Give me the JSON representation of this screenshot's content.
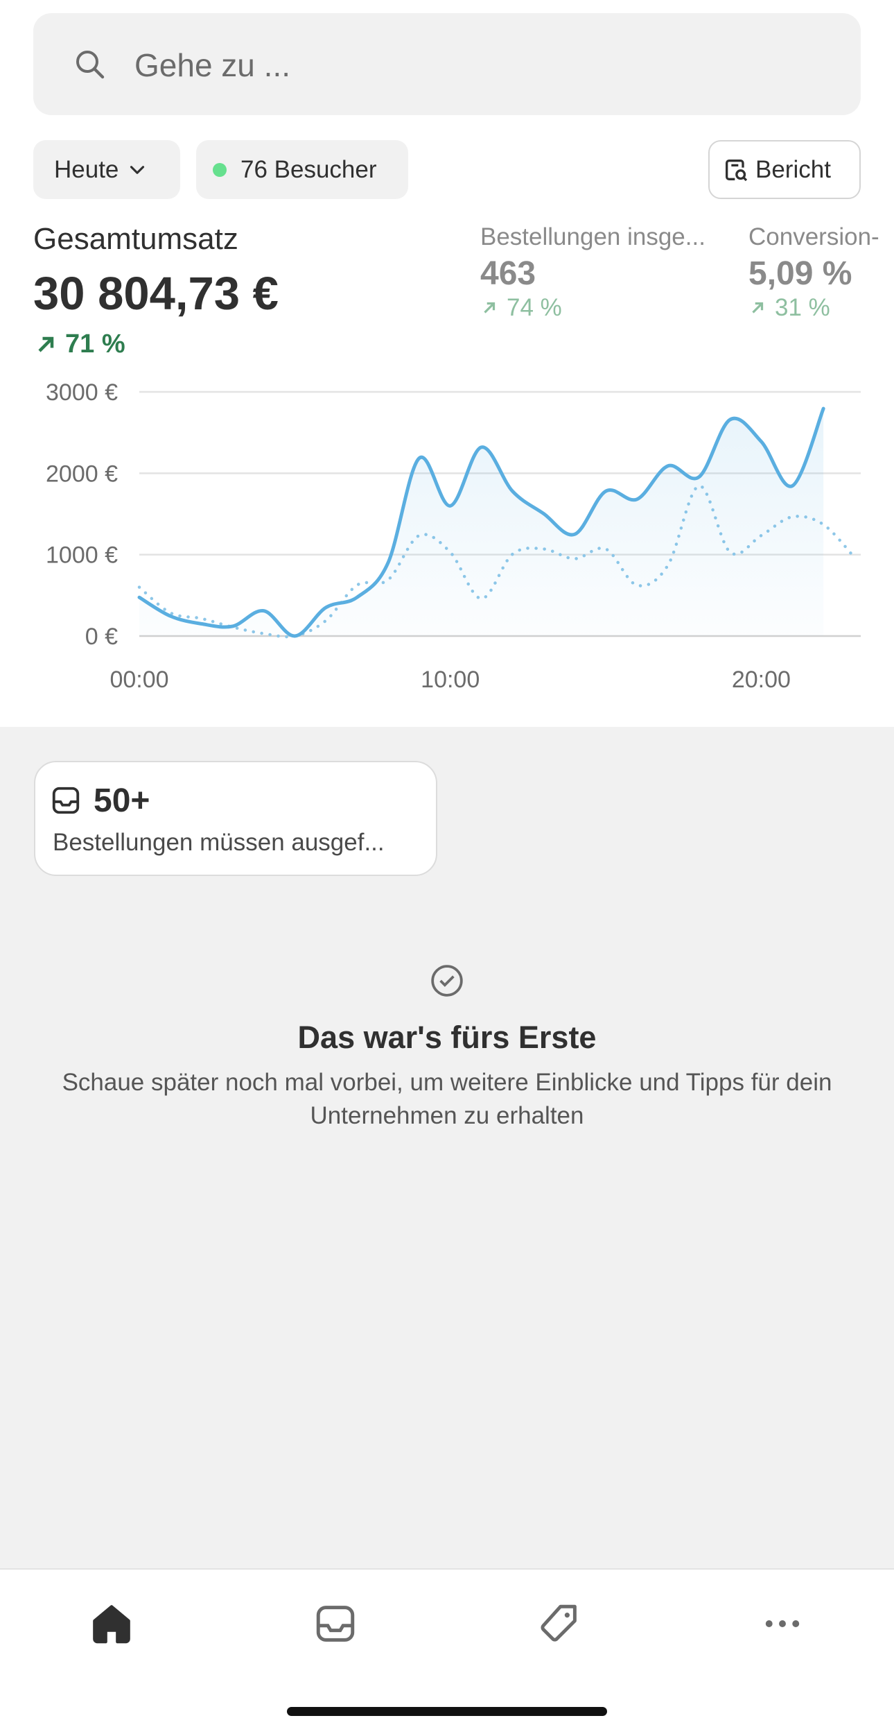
{
  "search": {
    "placeholder": "Gehe zu ..."
  },
  "filters": {
    "period": "Heute",
    "visitors": "76 Besucher",
    "report": "Bericht"
  },
  "metrics": [
    {
      "label": "Gesamtumsatz",
      "value": "30 804,73 €",
      "change": "71 %"
    },
    {
      "label": "Bestellungen insge...",
      "value": "463",
      "change": "74 %"
    },
    {
      "label": "Conversion-",
      "value": "5,09 %",
      "change": "31 %"
    }
  ],
  "chart_data": {
    "type": "line",
    "x": [
      0,
      1,
      2,
      3,
      4,
      5,
      6,
      7,
      8,
      9,
      10,
      11,
      12,
      13,
      14,
      15,
      16,
      17,
      18,
      19,
      20,
      21,
      22,
      23
    ],
    "series": [
      {
        "color": "#5aaee0",
        "style": "solid",
        "values": [
          475,
          245,
          150,
          120,
          310,
          0,
          350,
          475,
          900,
          2185,
          1600,
          2320,
          1780,
          1505,
          1250,
          1780,
          1680,
          2090,
          1955,
          2660,
          2390,
          1845,
          2795,
          null
        ]
      },
      {
        "color": "#8ec7e8",
        "style": "dotted",
        "values": [
          600,
          285,
          215,
          110,
          30,
          0,
          190,
          625,
          690,
          1235,
          1030,
          460,
          1005,
          1070,
          950,
          1070,
          625,
          870,
          1845,
          1030,
          1235,
          1465,
          1370,
          965
        ]
      }
    ],
    "xlim": [
      0,
      23.2
    ],
    "ylim": [
      0,
      3000
    ],
    "xticks": [
      {
        "value": 0,
        "label": "00:00"
      },
      {
        "value": 10,
        "label": "10:00"
      },
      {
        "value": 20,
        "label": "20:00"
      }
    ],
    "yticks": [
      {
        "value": 0,
        "label": "0 €"
      },
      {
        "value": 1000,
        "label": "1000 €"
      },
      {
        "value": 2000,
        "label": "2000 €"
      },
      {
        "value": 3000,
        "label": "3000 €"
      }
    ],
    "grid": true
  },
  "task_card": {
    "count": "50+",
    "text": "Bestellungen müssen ausgef..."
  },
  "empty_state": {
    "title": "Das war's fürs Erste",
    "text": "Schaue später noch mal vorbei, um weitere Einblicke und Tipps für dein Unternehmen zu erhalten"
  }
}
